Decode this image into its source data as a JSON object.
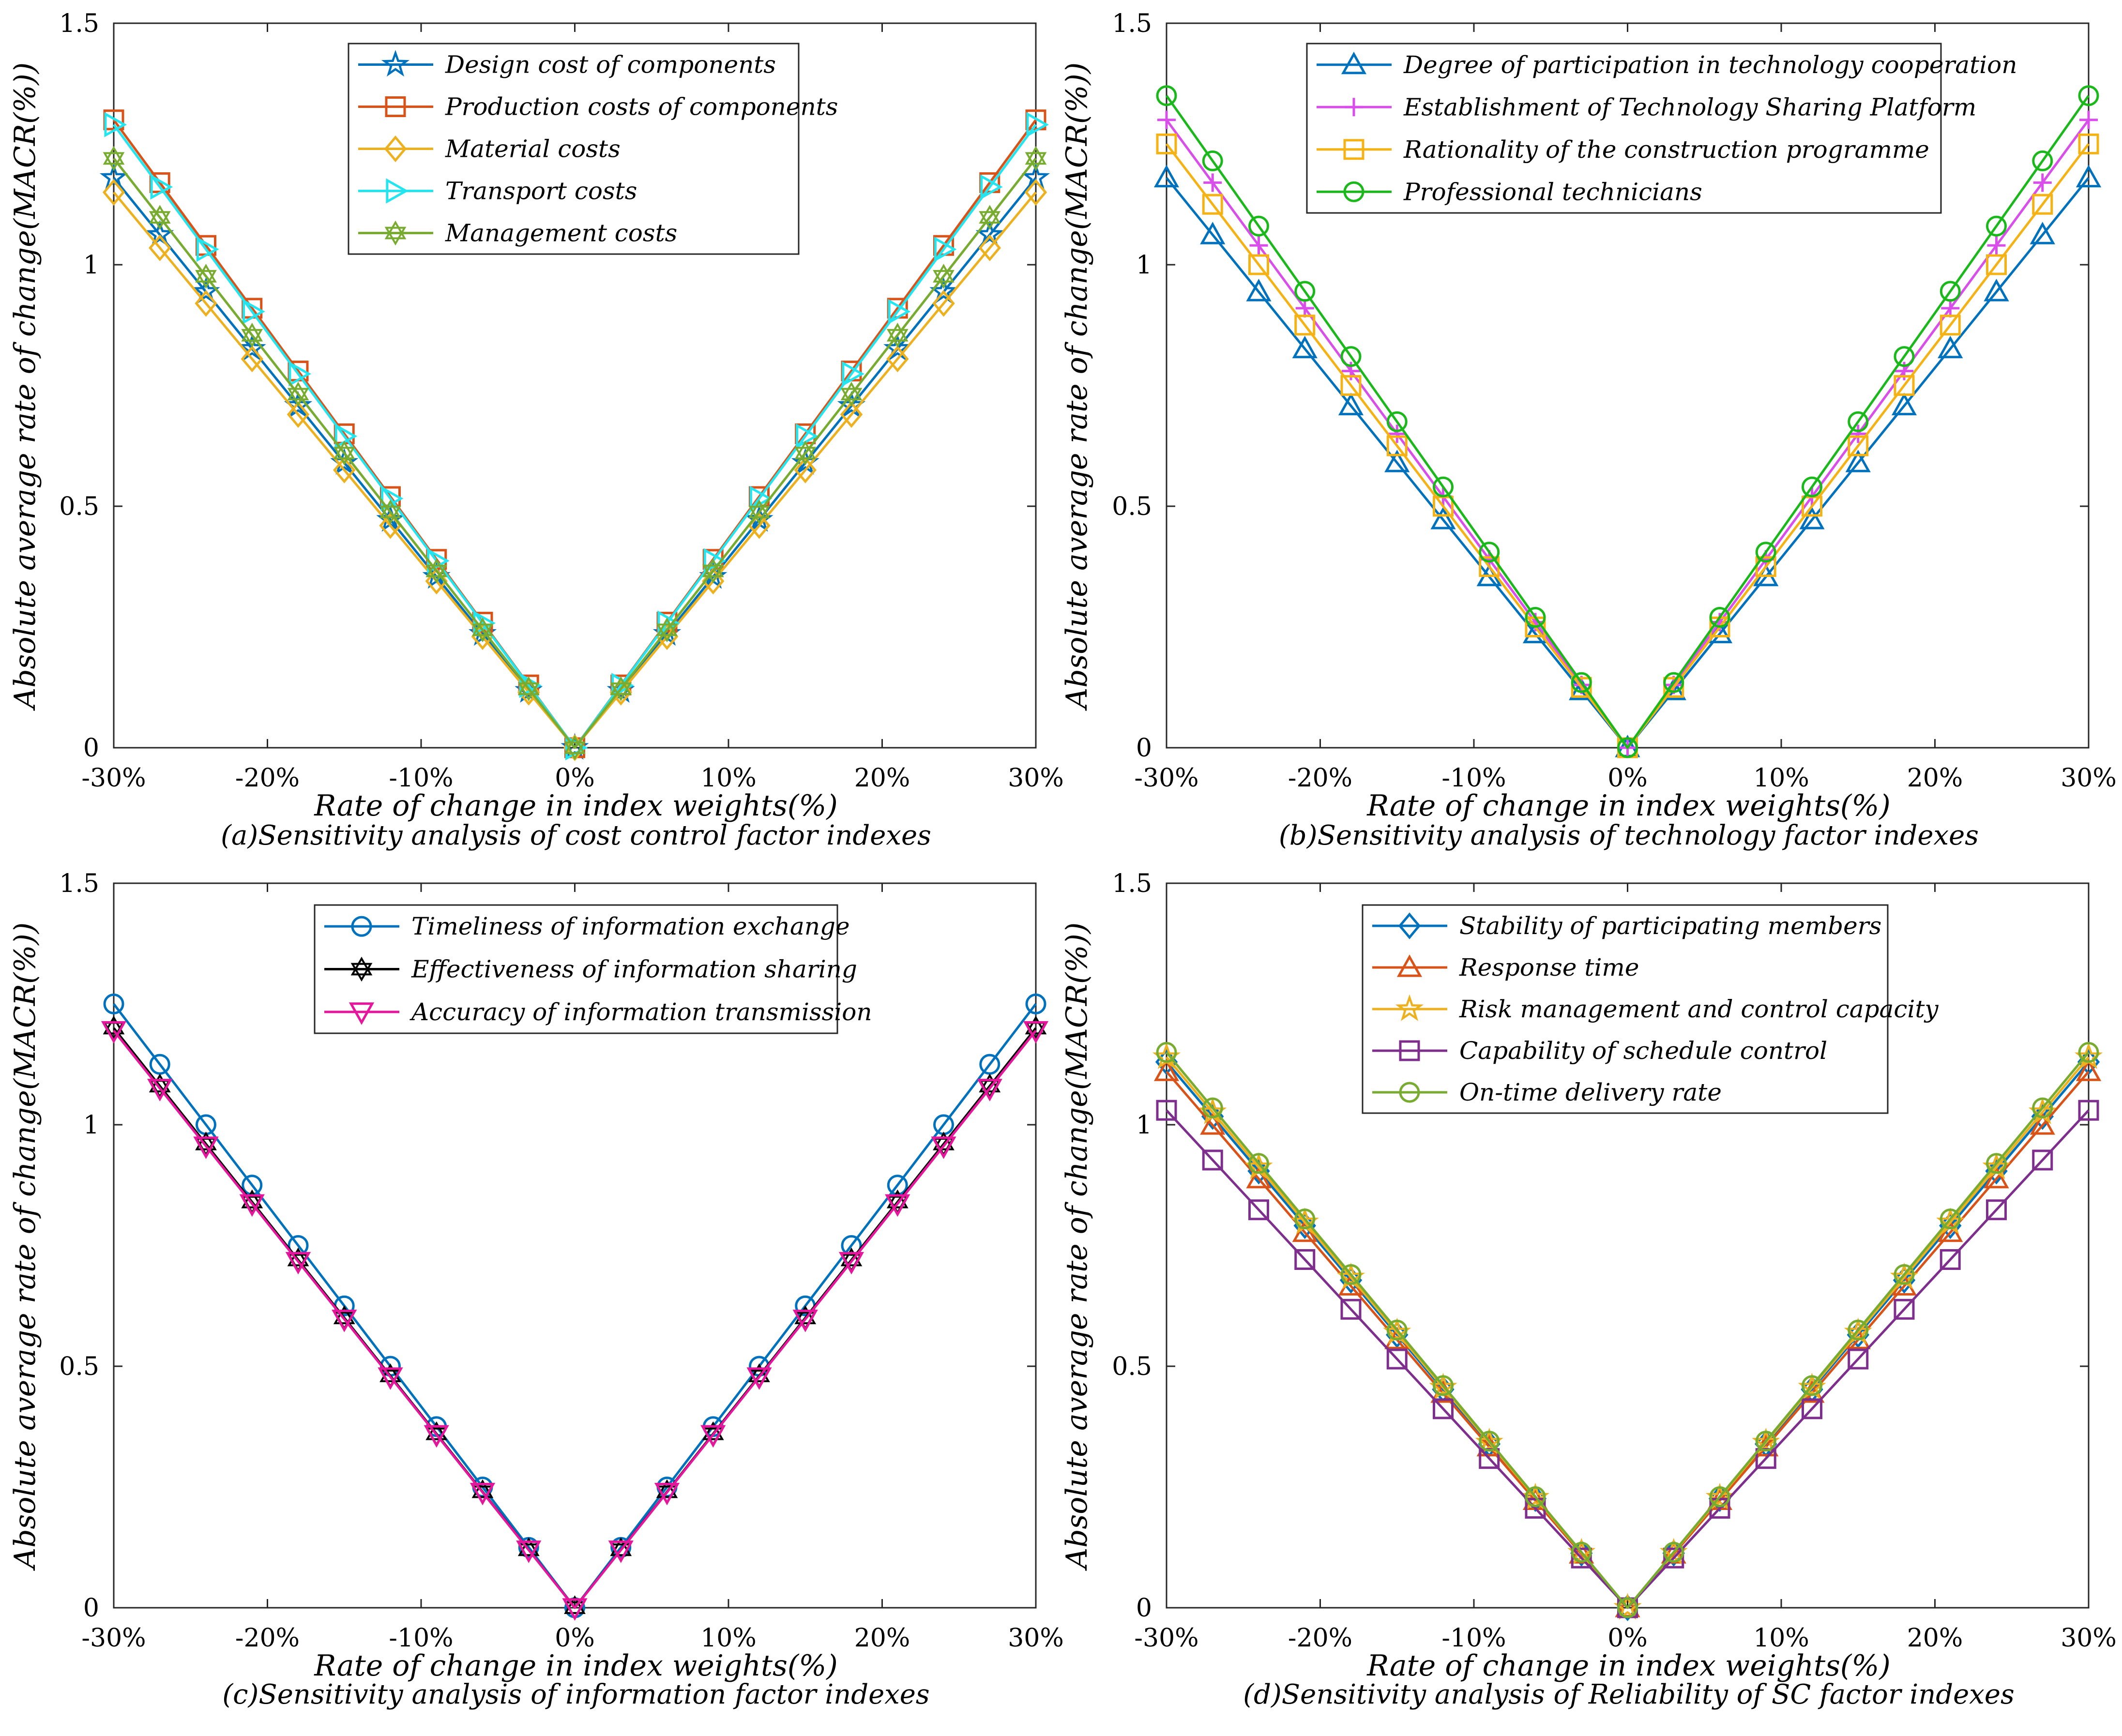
{
  "chart_data": [
    {
      "type": "line",
      "caption": "(a)Sensitivity analysis of cost control factor indexes",
      "xlabel": "Rate of change in index weights(%)",
      "ylabel": "Absolute average rate of change(MACR(%))",
      "x": [
        -30,
        -27,
        -24,
        -21,
        -18,
        -15,
        -12,
        -9,
        -6,
        -3,
        0,
        3,
        6,
        9,
        12,
        15,
        18,
        21,
        24,
        27,
        30
      ],
      "xlim": [
        -30,
        30
      ],
      "ylim": [
        0,
        1.5
      ],
      "xticks": [
        -30,
        -20,
        -10,
        0,
        10,
        20,
        30
      ],
      "xticklabels": [
        "-30%",
        "-20%",
        "-10%",
        "0%",
        "10%",
        "20%",
        "30%"
      ],
      "yticks": [
        0,
        0.5,
        1,
        1.5
      ],
      "yticklabels": [
        "0",
        "0.5",
        "1",
        "1.5"
      ],
      "legend": "top",
      "series": [
        {
          "name": "Design cost of components",
          "color": "#0072BD",
          "marker": "star",
          "slope": 0.03933
        },
        {
          "name": "Production costs of components",
          "color": "#D95319",
          "marker": "square",
          "slope": 0.04333
        },
        {
          "name": "Material costs",
          "color": "#EDB120",
          "marker": "diamond",
          "slope": 0.03833
        },
        {
          "name": "Transport costs",
          "color": "#22E5F0",
          "marker": "triangle-right",
          "slope": 0.043
        },
        {
          "name": "Management costs",
          "color": "#77AC30",
          "marker": "hexagram",
          "slope": 0.04067
        }
      ]
    },
    {
      "type": "line",
      "caption": "(b)Sensitivity analysis of technology factor indexes",
      "xlabel": "Rate of change in index weights(%)",
      "ylabel": "Absolute average rate of change(MACR(%))",
      "x": [
        -30,
        -27,
        -24,
        -21,
        -18,
        -15,
        -12,
        -9,
        -6,
        -3,
        0,
        3,
        6,
        9,
        12,
        15,
        18,
        21,
        24,
        27,
        30
      ],
      "xlim": [
        -30,
        30
      ],
      "ylim": [
        0,
        1.5
      ],
      "xticks": [
        -30,
        -20,
        -10,
        0,
        10,
        20,
        30
      ],
      "xticklabels": [
        "-30%",
        "-20%",
        "-10%",
        "0%",
        "10%",
        "20%",
        "30%"
      ],
      "yticks": [
        0,
        0.5,
        1,
        1.5
      ],
      "yticklabels": [
        "0",
        "0.5",
        "1",
        "1.5"
      ],
      "legend": "top",
      "series": [
        {
          "name": "Degree of participation in technology cooperation",
          "color": "#0072BD",
          "marker": "triangle-up",
          "slope": 0.03933
        },
        {
          "name": "Establishment of Technology Sharing Platform",
          "color": "#D94DEB",
          "marker": "plus",
          "slope": 0.04333
        },
        {
          "name": "Rationality of the construction programme",
          "color": "#F5B215",
          "marker": "square",
          "slope": 0.04167
        },
        {
          "name": "Professional technicians",
          "color": "#1AB81A",
          "marker": "circle",
          "slope": 0.045
        }
      ]
    },
    {
      "type": "line",
      "caption": "(c)Sensitivity analysis of information factor indexes",
      "xlabel": "Rate of change in index weights(%)",
      "ylabel": "Absolute average rate of change(MACR(%))",
      "x": [
        -30,
        -27,
        -24,
        -21,
        -18,
        -15,
        -12,
        -9,
        -6,
        -3,
        0,
        3,
        6,
        9,
        12,
        15,
        18,
        21,
        24,
        27,
        30
      ],
      "xlim": [
        -30,
        30
      ],
      "ylim": [
        0,
        1.5
      ],
      "xticks": [
        -30,
        -20,
        -10,
        0,
        10,
        20,
        30
      ],
      "xticklabels": [
        "-30%",
        "-20%",
        "-10%",
        "0%",
        "10%",
        "20%",
        "30%"
      ],
      "yticks": [
        0,
        0.5,
        1,
        1.5
      ],
      "yticklabels": [
        "0",
        "0.5",
        "1",
        "1.5"
      ],
      "legend": "top",
      "series": [
        {
          "name": "Timeliness of information exchange",
          "color": "#0072BD",
          "marker": "circle",
          "slope": 0.04167
        },
        {
          "name": "Effectiveness of information sharing",
          "color": "#000000",
          "marker": "hexagram",
          "slope": 0.04
        },
        {
          "name": "Accuracy of information transmission",
          "color": "#E6169C",
          "marker": "triangle-down",
          "slope": 0.03983
        }
      ]
    },
    {
      "type": "line",
      "caption": "(d)Sensitivity analysis of Reliability of SC factor indexes",
      "xlabel": "Rate of change in index weights(%)",
      "ylabel": "Absolute average rate of change(MACR(%))",
      "x": [
        -30,
        -27,
        -24,
        -21,
        -18,
        -15,
        -12,
        -9,
        -6,
        -3,
        0,
        3,
        6,
        9,
        12,
        15,
        18,
        21,
        24,
        27,
        30
      ],
      "xlim": [
        -30,
        30
      ],
      "ylim": [
        0,
        1.5
      ],
      "xticks": [
        -30,
        -20,
        -10,
        0,
        10,
        20,
        30
      ],
      "xticklabels": [
        "-30%",
        "-20%",
        "-10%",
        "0%",
        "10%",
        "20%",
        "30%"
      ],
      "yticks": [
        0,
        0.5,
        1,
        1.5
      ],
      "yticklabels": [
        "0",
        "0.5",
        "1",
        "1.5"
      ],
      "legend": "top",
      "series": [
        {
          "name": "Stability of participating members",
          "color": "#0072BD",
          "marker": "diamond",
          "slope": 0.03767
        },
        {
          "name": "Response time",
          "color": "#D95319",
          "marker": "triangle-up",
          "slope": 0.037
        },
        {
          "name": "Risk management and control capacity",
          "color": "#EDB120",
          "marker": "star",
          "slope": 0.038
        },
        {
          "name": "Capability of schedule control",
          "color": "#7E2F8E",
          "marker": "square",
          "slope": 0.03433
        },
        {
          "name": "On-time delivery rate",
          "color": "#77AC30",
          "marker": "circle",
          "slope": 0.03833
        }
      ]
    }
  ]
}
